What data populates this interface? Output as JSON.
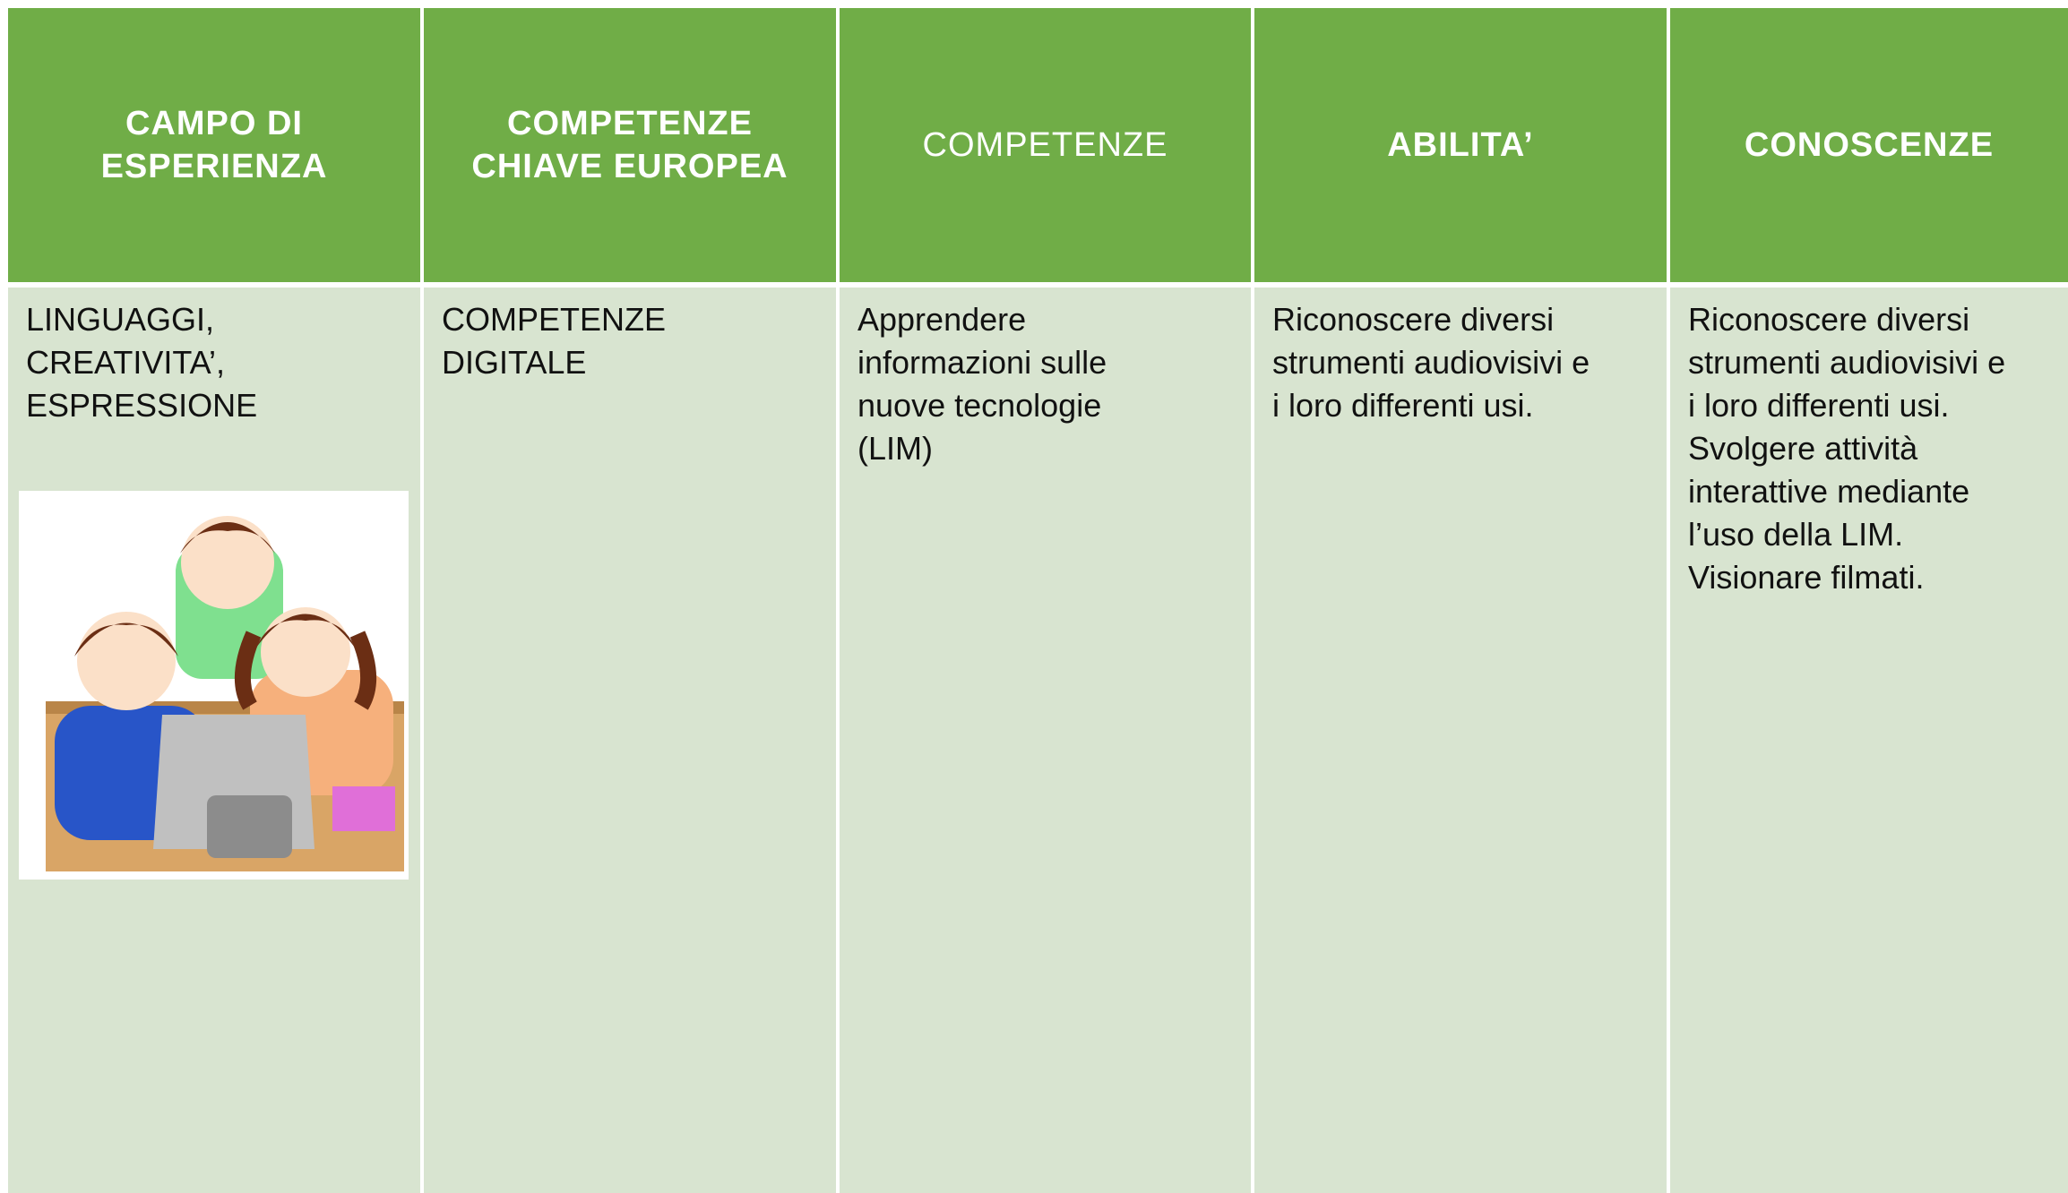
{
  "table": {
    "header": [
      [
        "CAMPO DI",
        "ESPERIENZA"
      ],
      [
        "COMPETENZE",
        "CHIAVE EUROPEA"
      ],
      [
        "COMPETENZE"
      ],
      [
        "ABILITA’"
      ],
      [
        "CONOSCENZE"
      ]
    ],
    "rows": [
      [
        [
          "LINGUAGGI,",
          "CREATIVITA’,",
          "ESPRESSIONE"
        ],
        [
          "COMPETENZE",
          "DIGITALE"
        ],
        [
          "Apprendere",
          "informazioni sulle",
          "nuove tecnologie",
          "(LIM)"
        ],
        [
          "Riconoscere diversi",
          "strumenti audiovisivi e",
          "i loro differenti usi."
        ],
        [
          "Riconoscere diversi",
          "strumenti audiovisivi e",
          "i loro differenti usi.",
          "Svolgere attività",
          "interattive mediante",
          "l’uso della LIM.",
          "Visionare filmati."
        ]
      ]
    ]
  }
}
